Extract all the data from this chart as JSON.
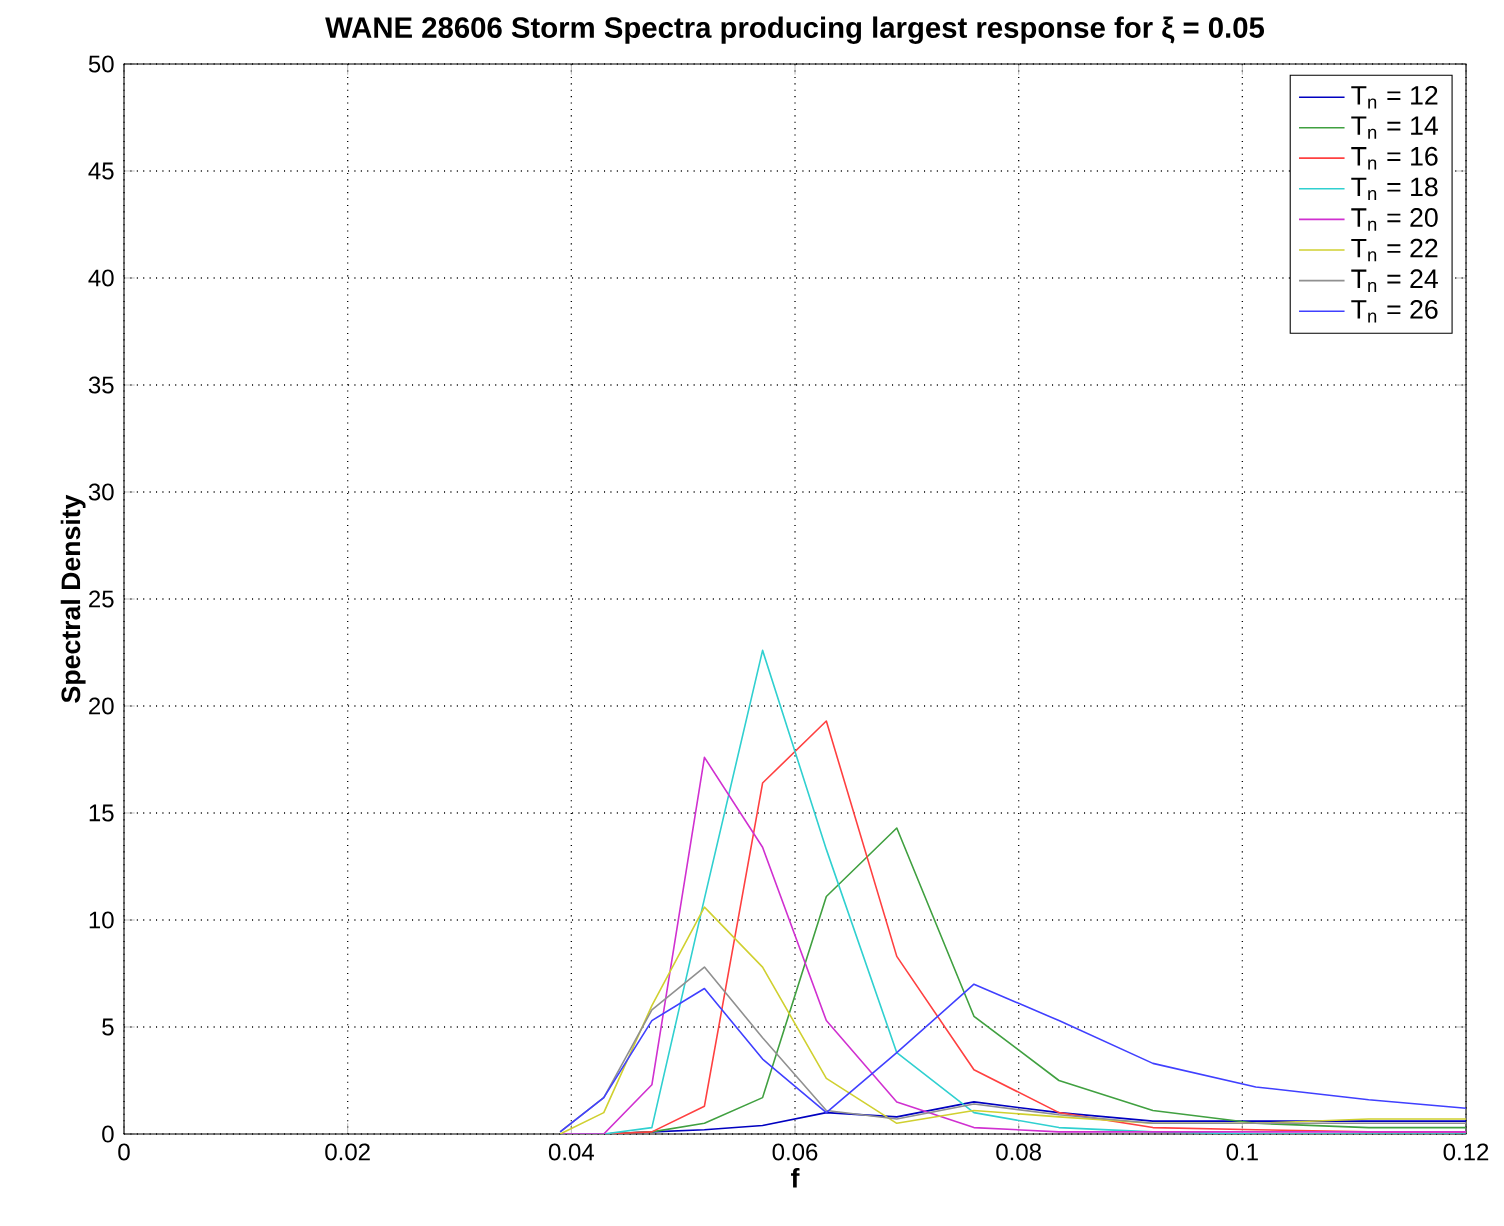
{
  "chart_data": {
    "type": "line",
    "title": "WANE 28606 Storm Spectra producing largest response for ξ = 0.05",
    "xlabel": "f",
    "ylabel": "Spectral Density",
    "x": [
      0.039,
      0.0429,
      0.0472,
      0.0519,
      0.0571,
      0.0628,
      0.0691,
      0.076,
      0.0836,
      0.092,
      0.1012,
      0.1113,
      0.12
    ],
    "series": [
      {
        "name": "T$_{n}$ = 12",
        "color": "#0000c0",
        "values": [
          0,
          0,
          0.1,
          0.2,
          0.4,
          1.0,
          0.8,
          1.5,
          1.0,
          0.6,
          0.6,
          0.6,
          0.6
        ]
      },
      {
        "name": "T$_{n}$ = 14",
        "color": "#40a040",
        "values": [
          0,
          0,
          0.1,
          0.5,
          1.7,
          11.1,
          14.3,
          5.5,
          2.5,
          1.1,
          0.5,
          0.3,
          0.3
        ]
      },
      {
        "name": "T$_{n}$ = 16",
        "color": "#ff4040",
        "values": [
          0,
          0,
          0.1,
          1.3,
          16.4,
          19.3,
          8.3,
          3.0,
          1.0,
          0.3,
          0.2,
          0.1,
          0.1
        ]
      },
      {
        "name": "T$_{n}$ = 18",
        "color": "#30d0d0",
        "values": [
          0,
          0,
          0.3,
          11,
          22.6,
          13.3,
          3.8,
          1.0,
          0.3,
          0.1,
          0,
          0,
          0
        ]
      },
      {
        "name": "T$_{n}$ = 20",
        "color": "#d030d0",
        "values": [
          0,
          0,
          2.3,
          17.6,
          13.4,
          5.3,
          1.5,
          0.3,
          0.1,
          0.1,
          0.1,
          0.1,
          0.1
        ]
      },
      {
        "name": "T$_{n}$ = 22",
        "color": "#d0d030",
        "values": [
          0,
          1.0,
          6.0,
          10.6,
          7.8,
          2.6,
          0.5,
          1.1,
          0.8,
          0.5,
          0.5,
          0.7,
          0.7
        ]
      },
      {
        "name": "T$_{n}$ = 24",
        "color": "#909090",
        "values": [
          0.1,
          1.7,
          5.8,
          7.8,
          4.5,
          1.1,
          0.7,
          1.4,
          0.9,
          0.5,
          0.5,
          0.5,
          0.5
        ]
      },
      {
        "name": "T$_{n}$ = 26",
        "color": "#4040ff",
        "values": [
          0.1,
          1.7,
          5.3,
          6.8,
          3.5,
          1.0,
          3.8,
          7.0,
          5.3,
          3.3,
          2.2,
          1.6,
          1.2
        ]
      }
    ],
    "xlim": [
      0,
      0.12
    ],
    "ylim": [
      0,
      50
    ],
    "xticks": [
      0,
      0.02,
      0.04,
      0.06,
      0.08,
      0.1,
      0.12
    ],
    "yticks": [
      0,
      5,
      10,
      15,
      20,
      25,
      30,
      35,
      40,
      45,
      50
    ],
    "grid": true,
    "legend": "top right",
    "marker": "none",
    "line_style": "solid"
  }
}
